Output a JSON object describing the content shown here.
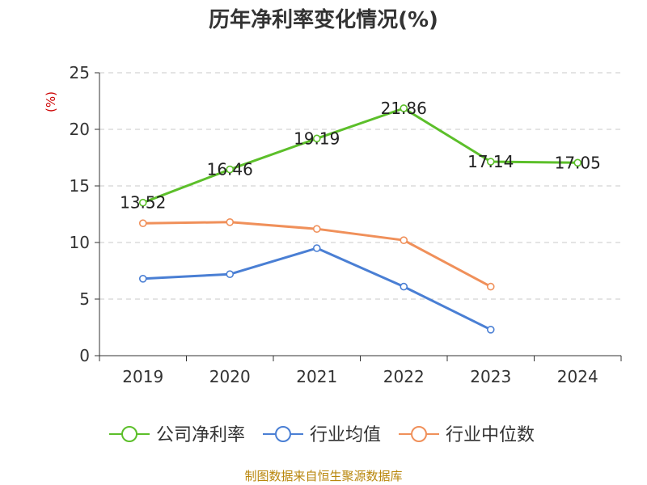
{
  "chart_data": {
    "type": "line",
    "title": "历年净利率变化情况(%)",
    "ylabel": "(%)",
    "xlabel": "",
    "categories": [
      "2019",
      "2020",
      "2021",
      "2022",
      "2023",
      "2024"
    ],
    "ylim": [
      0,
      25
    ],
    "yticks": [
      0,
      5,
      10,
      15,
      20,
      25
    ],
    "grid": true,
    "legend_position": "bottom",
    "series": [
      {
        "name": "公司净利率",
        "color": "#5cbf2a",
        "values": [
          13.52,
          16.46,
          19.19,
          21.86,
          17.14,
          17.05
        ],
        "labels": [
          "13.52",
          "16.46",
          "19.19",
          "21.86",
          "17.14",
          "17.05"
        ],
        "show_labels": true
      },
      {
        "name": "行业均值",
        "color": "#4a7fd4",
        "values": [
          6.8,
          7.2,
          9.5,
          6.1,
          2.3,
          null
        ],
        "show_labels": false
      },
      {
        "name": "行业中位数",
        "color": "#f0905a",
        "values": [
          11.7,
          11.8,
          11.2,
          10.2,
          6.1,
          null
        ],
        "show_labels": false
      }
    ]
  },
  "footer": {
    "source": "制图数据来自恒生聚源数据库"
  }
}
